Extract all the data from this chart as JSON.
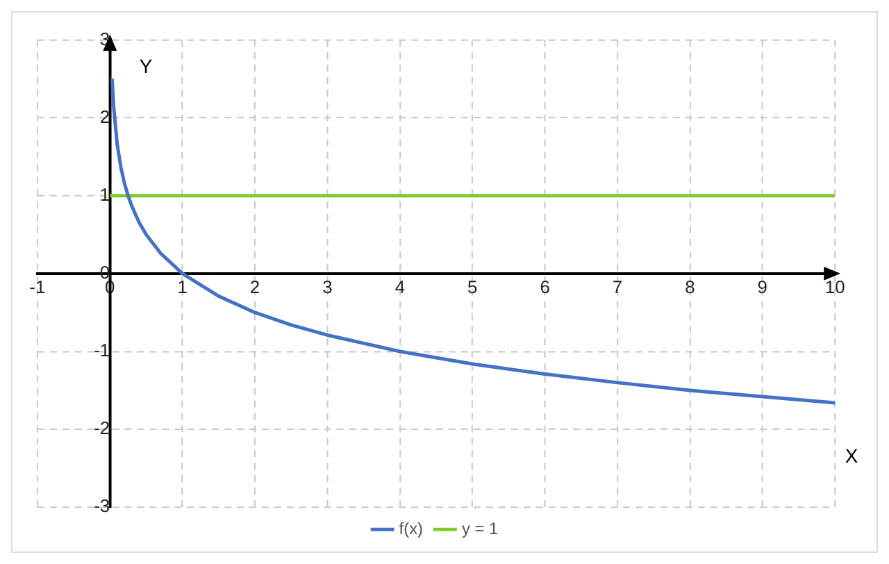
{
  "chart_data": {
    "type": "line",
    "xlabel": "X",
    "ylabel": "Y",
    "xlim": [
      -1,
      10
    ],
    "ylim": [
      -3,
      3
    ],
    "xticks": [
      -1,
      0,
      1,
      2,
      3,
      4,
      5,
      6,
      7,
      8,
      9,
      10
    ],
    "yticks": [
      -3,
      -2,
      -1,
      0,
      1,
      2,
      3
    ],
    "grid": true,
    "legend": "bottom",
    "marker": "none",
    "line_style": "solid",
    "series": [
      {
        "name": "f(x)",
        "color": "#4472c4",
        "x": [
          0.03,
          0.05,
          0.1,
          0.15,
          0.2,
          0.25,
          0.3,
          0.4,
          0.5,
          0.7,
          1,
          1.5,
          2,
          2.5,
          3,
          4,
          5,
          6,
          7,
          8,
          9,
          10
        ],
        "values": [
          2.5,
          2.16,
          1.66,
          1.37,
          1.16,
          1,
          0.87,
          0.66,
          0.5,
          0.26,
          0,
          -0.29,
          -0.5,
          -0.66,
          -0.79,
          -1,
          -1.16,
          -1.29,
          -1.4,
          -1.5,
          -1.58,
          -1.66
        ]
      },
      {
        "name": "y = 1",
        "color": "#7ccc2c",
        "x": [
          0,
          10
        ],
        "values": [
          1,
          1
        ]
      }
    ]
  }
}
